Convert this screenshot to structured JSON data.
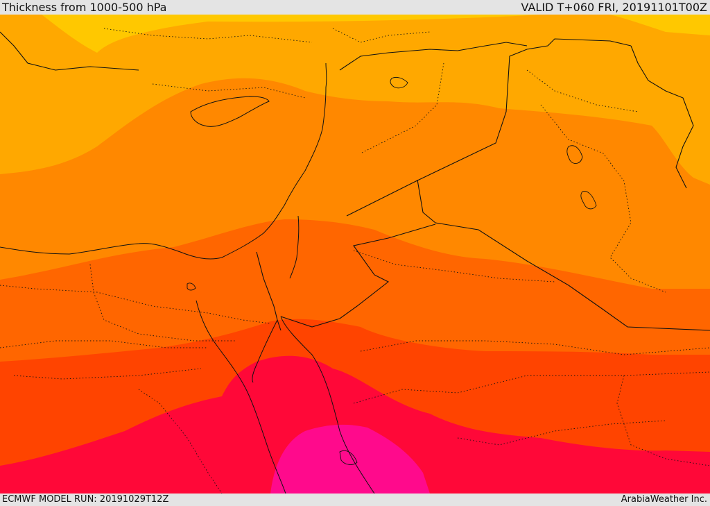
{
  "header": {
    "title": "Thickness from 1000-500 hPa",
    "valid": "VALID T+060 FRI, 20191101T00Z"
  },
  "footer": {
    "model_run": "ECMWF MODEL RUN: 20191029T12Z",
    "credit": "ArabiaWeather Inc."
  },
  "map": {
    "colors": {
      "band_1": "#ffc800",
      "band_2": "#ffa800",
      "band_3": "#ff8800",
      "band_4": "#ff6600",
      "band_5": "#ff4400",
      "band_6": "#ff0838",
      "band_7": "#ff0a8c",
      "borders": "#111111"
    }
  }
}
